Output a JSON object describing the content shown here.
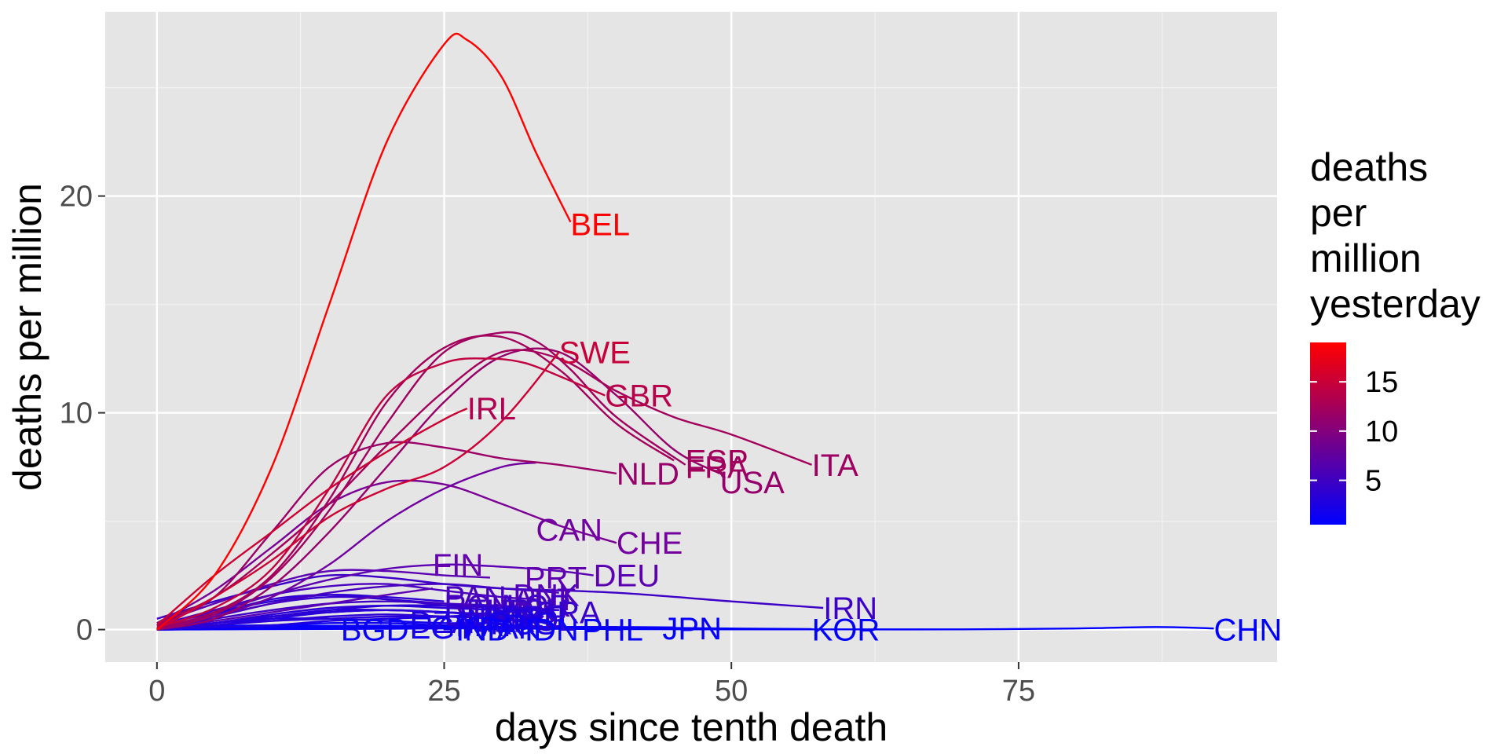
{
  "chart_data": {
    "type": "line",
    "xlabel": "days since tenth death",
    "ylabel": "deaths per million",
    "xlim": [
      -4.5,
      97.5
    ],
    "ylim": [
      -1.5,
      28.5
    ],
    "x_ticks": [
      0,
      25,
      50,
      75
    ],
    "x_tick_labels": [
      "0",
      "25",
      "50",
      "75"
    ],
    "y_ticks": [
      0,
      10,
      20
    ],
    "y_tick_labels": [
      "0",
      "10",
      "20"
    ],
    "grid": true,
    "panel_background": "#e5e5e5",
    "legend": {
      "title_lines": [
        "deaths",
        "per",
        "million",
        "yesterday"
      ],
      "type": "colorbar",
      "range": [
        0.5,
        19
      ],
      "ticks": [
        5,
        10,
        15
      ],
      "tick_labels": [
        "5",
        "10",
        "15"
      ],
      "low_color": "#0000ff",
      "high_color": "#ff0000",
      "placement": "right"
    },
    "series": [
      {
        "name": "BEL",
        "color": "#ff0000",
        "x": [
          0,
          5,
          10,
          15,
          20,
          25,
          27,
          30,
          33,
          36
        ],
        "y": [
          0,
          2.5,
          7.5,
          15,
          22.5,
          27,
          27.2,
          25.5,
          22,
          18.8
        ]
      },
      {
        "name": "SWE",
        "color": "#cc0033",
        "x": [
          0,
          5,
          10,
          15,
          20,
          25,
          30,
          35
        ],
        "y": [
          0,
          1.5,
          3.2,
          5.2,
          6.5,
          7.5,
          9.6,
          12.8
        ]
      },
      {
        "name": "IRL",
        "color": "#cc0033",
        "x": [
          0,
          5,
          10,
          15,
          20,
          25,
          27
        ],
        "y": [
          0.2,
          2.5,
          4.5,
          6.5,
          8.2,
          9.7,
          10.2
        ]
      },
      {
        "name": "GBR",
        "color": "#c00040",
        "x": [
          0,
          5,
          10,
          15,
          20,
          25,
          29,
          32,
          35,
          39
        ],
        "y": [
          0.1,
          1,
          2.8,
          6.5,
          10.8,
          12.3,
          12.5,
          12.3,
          11.7,
          10.8
        ]
      },
      {
        "name": "ESP",
        "color": "#a3005c",
        "x": [
          0,
          5,
          10,
          15,
          20,
          25,
          30,
          35,
          40,
          45
        ],
        "y": [
          0.1,
          0.8,
          2.5,
          6,
          10.5,
          13,
          13.5,
          12,
          9.5,
          7.8
        ]
      },
      {
        "name": "ITA",
        "color": "#a3005c",
        "x": [
          0,
          5,
          10,
          15,
          20,
          25,
          30,
          35,
          40,
          45,
          50,
          57
        ],
        "y": [
          0.3,
          1.5,
          3.5,
          5.8,
          8.5,
          11,
          12.8,
          12.5,
          11,
          9.8,
          9,
          7.6
        ]
      },
      {
        "name": "FRA",
        "color": "#a0005f",
        "x": [
          0,
          5,
          10,
          15,
          20,
          25,
          30,
          33,
          36,
          40,
          46
        ],
        "y": [
          0,
          0.7,
          2.4,
          5.5,
          9.5,
          12.8,
          13.7,
          13.3,
          12,
          9.8,
          7.6
        ]
      },
      {
        "name": "USA",
        "color": "#96006b",
        "x": [
          0,
          5,
          10,
          15,
          20,
          25,
          30,
          35,
          40,
          45,
          49
        ],
        "y": [
          0,
          0.5,
          2,
          4.5,
          7.5,
          10.5,
          12.6,
          12.8,
          10.8,
          8.3,
          7.2
        ]
      },
      {
        "name": "NLD",
        "color": "#9a0066",
        "x": [
          0,
          5,
          10,
          15,
          20,
          25,
          30,
          35,
          40
        ],
        "y": [
          0.2,
          1.5,
          4.5,
          7.5,
          8.6,
          8.4,
          7.9,
          7.6,
          7.2
        ]
      },
      {
        "name": "CAN",
        "color": "#7000a0",
        "x": [
          0,
          5,
          10,
          15,
          20,
          25,
          30,
          33
        ],
        "y": [
          0,
          0.6,
          1.5,
          3,
          5,
          6.5,
          7.5,
          7.7
        ]
      },
      {
        "name": "CHE",
        "color": "#7a0095",
        "x": [
          0,
          5,
          10,
          15,
          20,
          25,
          30,
          35,
          40
        ],
        "y": [
          0.3,
          1.8,
          3.8,
          5.8,
          6.8,
          6.7,
          5.8,
          4.8,
          4
        ]
      },
      {
        "name": "FIN",
        "color": "#5c00b3",
        "x": [
          0,
          5,
          10,
          15,
          20,
          24
        ],
        "y": [
          0.1,
          0.4,
          0.8,
          1.2,
          1.6,
          1.9
        ]
      },
      {
        "name": "PRT",
        "color": "#5c00b3",
        "x": [
          0,
          5,
          10,
          15,
          20,
          25,
          29
        ],
        "y": [
          0.3,
          1.2,
          2.1,
          2.7,
          2.7,
          2.5,
          2.4
        ]
      },
      {
        "name": "DEU",
        "color": "#5c00b3",
        "x": [
          0,
          5,
          10,
          15,
          20,
          25,
          30,
          35,
          38
        ],
        "y": [
          0.2,
          0.8,
          1.6,
          2.3,
          2.8,
          3,
          2.9,
          2.7,
          2.5
        ]
      },
      {
        "name": "IRN",
        "color": "#3d00c7",
        "x": [
          0,
          5,
          10,
          15,
          20,
          25,
          30,
          40,
          50,
          58
        ],
        "y": [
          0.5,
          1.3,
          2,
          2.5,
          2.4,
          2.1,
          1.9,
          1.7,
          1.3,
          1
        ]
      },
      {
        "name": "DNK",
        "color": "#4a00bf",
        "x": [
          0,
          5,
          10,
          15,
          20,
          25,
          30,
          35
        ],
        "y": [
          0.1,
          0.6,
          1.2,
          1.7,
          2,
          2.1,
          1.9,
          1.7
        ]
      },
      {
        "name": "AUT",
        "color": "#4a00bf",
        "x": [
          0,
          5,
          10,
          15,
          20,
          25,
          30,
          33
        ],
        "y": [
          0.2,
          0.9,
          1.6,
          2,
          2.1,
          1.8,
          1.5,
          1.4
        ]
      },
      {
        "name": "NOR",
        "color": "#4000c4",
        "x": [
          0,
          5,
          10,
          15,
          20,
          25,
          30,
          32
        ],
        "y": [
          0.1,
          0.5,
          0.9,
          1.2,
          1.3,
          1.2,
          1.1,
          1
        ]
      },
      {
        "name": "CZE",
        "color": "#2b00d6",
        "x": [
          0,
          5,
          10,
          15,
          20,
          25,
          30
        ],
        "y": [
          0,
          0.3,
          0.6,
          0.8,
          0.9,
          0.8,
          0.6
        ]
      },
      {
        "name": "POL",
        "color": "#2b00d6",
        "x": [
          0,
          5,
          10,
          15,
          20,
          25,
          31
        ],
        "y": [
          0,
          0.2,
          0.4,
          0.6,
          0.7,
          0.6,
          0.5
        ]
      },
      {
        "name": "ROU",
        "color": "#2b00d6",
        "x": [
          0,
          5,
          10,
          15,
          20,
          25,
          30
        ],
        "y": [
          0,
          0.3,
          0.7,
          1,
          1.1,
          1,
          0.9
        ]
      },
      {
        "name": "ISR",
        "color": "#2500db",
        "x": [
          0,
          5,
          10,
          15,
          20,
          25,
          30
        ],
        "y": [
          0,
          0.2,
          0.5,
          0.8,
          0.9,
          0.8,
          0.6
        ]
      },
      {
        "name": "TUR",
        "color": "#3300d0",
        "x": [
          0,
          5,
          10,
          15,
          20,
          25,
          29
        ],
        "y": [
          0.1,
          0.6,
          1.2,
          1.5,
          1.4,
          1.1,
          0.9
        ]
      },
      {
        "name": "RUS",
        "color": "#2000e0",
        "x": [
          0,
          5,
          10,
          15,
          20,
          25,
          29
        ],
        "y": [
          0,
          0.1,
          0.2,
          0.4,
          0.5,
          0.6,
          0.7
        ]
      },
      {
        "name": "ECU",
        "color": "#3000d2",
        "x": [
          0,
          5,
          10,
          15,
          20,
          25,
          30,
          35
        ],
        "y": [
          0.1,
          0.7,
          1.4,
          1.6,
          1.4,
          1.2,
          1,
          0.9
        ]
      },
      {
        "name": "BRA",
        "color": "#2a00d8",
        "x": [
          0,
          5,
          10,
          15,
          20,
          25,
          30,
          35
        ],
        "y": [
          0,
          0.3,
          0.6,
          0.9,
          1.1,
          1.1,
          1,
          0.9
        ]
      },
      {
        "name": "PER",
        "color": "#2a00d8",
        "x": [
          0,
          5,
          10,
          15,
          20,
          25,
          30
        ],
        "y": [
          0,
          0.3,
          0.6,
          0.8,
          0.9,
          0.8,
          0.7
        ]
      },
      {
        "name": "MEX",
        "color": "#2a00d8",
        "x": [
          0,
          5,
          10,
          15,
          20,
          25,
          30
        ],
        "y": [
          0,
          0.2,
          0.4,
          0.5,
          0.6,
          0.6,
          0.5
        ]
      },
      {
        "name": "DOM",
        "color": "#2a00d8",
        "x": [
          0,
          5,
          10,
          15,
          20,
          25,
          30
        ],
        "y": [
          0,
          0.3,
          0.6,
          0.9,
          0.9,
          0.8,
          0.7
        ]
      },
      {
        "name": "PAN",
        "color": "#3000d2",
        "x": [
          0,
          5,
          10,
          15,
          20,
          25
        ],
        "y": [
          0.2,
          0.8,
          1.3,
          1.6,
          1.5,
          1.3
        ]
      },
      {
        "name": "IND",
        "color": "#0800f8",
        "x": [
          0,
          5,
          10,
          15,
          20,
          25,
          30,
          33
        ],
        "y": [
          0,
          0.01,
          0.02,
          0.03,
          0.04,
          0.05,
          0.06,
          0.07
        ]
      },
      {
        "name": "IDN",
        "color": "#0a00f5",
        "x": [
          0,
          5,
          10,
          15,
          20,
          25,
          30,
          35
        ],
        "y": [
          0,
          0.03,
          0.06,
          0.08,
          0.1,
          0.1,
          0.1,
          0.1
        ]
      },
      {
        "name": "PHL",
        "color": "#0a00f5",
        "x": [
          0,
          5,
          10,
          15,
          20,
          25,
          30,
          35,
          40
        ],
        "y": [
          0,
          0.05,
          0.1,
          0.12,
          0.14,
          0.14,
          0.13,
          0.12,
          0.12
        ]
      },
      {
        "name": "EGY",
        "color": "#0a00f5",
        "x": [
          0,
          5,
          10,
          15,
          20,
          25,
          29
        ],
        "y": [
          0,
          0.03,
          0.06,
          0.08,
          0.09,
          0.1,
          0.1
        ]
      },
      {
        "name": "PAK",
        "color": "#0a00f5",
        "x": [
          0,
          5,
          10,
          15,
          20,
          25,
          30
        ],
        "y": [
          0,
          0.02,
          0.04,
          0.06,
          0.07,
          0.08,
          0.09
        ]
      },
      {
        "name": "BGD",
        "color": "#0a00f5",
        "x": [
          0,
          5,
          10,
          15,
          17
        ],
        "y": [
          0,
          0.02,
          0.04,
          0.05,
          0.05
        ]
      },
      {
        "name": "DZA",
        "color": "#0f00f0",
        "x": [
          0,
          5,
          10,
          15,
          20,
          25,
          30
        ],
        "y": [
          0.1,
          0.3,
          0.5,
          0.5,
          0.4,
          0.3,
          0.3
        ]
      },
      {
        "name": "MAR",
        "color": "#0f00f0",
        "x": [
          0,
          5,
          10,
          15,
          20,
          25,
          28
        ],
        "y": [
          0,
          0.1,
          0.2,
          0.3,
          0.3,
          0.2,
          0.2
        ]
      },
      {
        "name": "JPN",
        "color": "#0a00f5",
        "x": [
          0,
          5,
          10,
          15,
          20,
          25,
          30,
          35,
          40,
          45
        ],
        "y": [
          0,
          0.03,
          0.05,
          0.07,
          0.08,
          0.1,
          0.12,
          0.12,
          0.12,
          0.1
        ]
      },
      {
        "name": "KOR",
        "color": "#0500fa",
        "x": [
          0,
          10,
          20,
          30,
          40,
          50,
          57
        ],
        "y": [
          0.1,
          0.15,
          0.18,
          0.12,
          0.1,
          0.05,
          0.02
        ]
      },
      {
        "name": "CHN",
        "color": "#0000ff",
        "x": [
          0,
          10,
          20,
          30,
          40,
          50,
          60,
          70,
          80,
          87,
          92
        ],
        "y": [
          0.1,
          0.2,
          0.12,
          0.05,
          0.02,
          0.01,
          0.01,
          0.01,
          0.05,
          0.12,
          0.05
        ]
      }
    ],
    "labels": [
      {
        "text": "BEL",
        "x": 36,
        "y": 18.7,
        "color": "#ff0000"
      },
      {
        "text": "SWE",
        "x": 35,
        "y": 12.8,
        "color": "#c8003a"
      },
      {
        "text": "GBR",
        "x": 39,
        "y": 10.8,
        "color": "#b8004a"
      },
      {
        "text": "IRL",
        "x": 27,
        "y": 10.2,
        "color": "#b0004f"
      },
      {
        "text": "ESP",
        "x": 46,
        "y": 7.8,
        "color": "#a3005c"
      },
      {
        "text": "FRA",
        "x": 46,
        "y": 7.5,
        "color": "#a0005f"
      },
      {
        "text": "ITA",
        "x": 57,
        "y": 7.6,
        "color": "#9e0062"
      },
      {
        "text": "NLD",
        "x": 40,
        "y": 7.2,
        "color": "#98006a"
      },
      {
        "text": "USA",
        "x": 49,
        "y": 6.8,
        "color": "#96006b"
      },
      {
        "text": "CAN",
        "x": 33,
        "y": 4.6,
        "color": "#7000a0"
      },
      {
        "text": "CHE",
        "x": 40,
        "y": 4.0,
        "color": "#7400a0"
      },
      {
        "text": "FIN",
        "x": 24,
        "y": 3.0,
        "color": "#6400ad"
      },
      {
        "text": "PRT",
        "x": 32,
        "y": 2.4,
        "color": "#6000b0"
      },
      {
        "text": "DEU",
        "x": 38,
        "y": 2.5,
        "color": "#5c00b3"
      },
      {
        "text": "DNK",
        "x": 31,
        "y": 1.6,
        "color": "#5200ba"
      },
      {
        "text": "AUT",
        "x": 31,
        "y": 1.4,
        "color": "#5000bc"
      },
      {
        "text": "PAN",
        "x": 25,
        "y": 1.5,
        "color": "#4a00bf"
      },
      {
        "text": "ROU",
        "x": 25,
        "y": 1.1,
        "color": "#4800c0"
      },
      {
        "text": "NOR",
        "x": 30,
        "y": 1.1,
        "color": "#4400c2"
      },
      {
        "text": "TUR",
        "x": 27,
        "y": 0.9,
        "color": "#4000c4"
      },
      {
        "text": "ECU",
        "x": 30,
        "y": 0.9,
        "color": "#3c00c7"
      },
      {
        "text": "IRN",
        "x": 58,
        "y": 1.0,
        "color": "#3d00c7"
      },
      {
        "text": "BRA",
        "x": 33,
        "y": 0.8,
        "color": "#3800ca"
      },
      {
        "text": "DOM",
        "x": 25,
        "y": 0.7,
        "color": "#3400cd"
      },
      {
        "text": "CZE",
        "x": 30,
        "y": 0.6,
        "color": "#3000d2"
      },
      {
        "text": "PER",
        "x": 28,
        "y": 0.6,
        "color": "#2c00d5"
      },
      {
        "text": "ISR",
        "x": 29,
        "y": 0.5,
        "color": "#2800d8"
      },
      {
        "text": "POL",
        "x": 31,
        "y": 0.45,
        "color": "#2500db"
      },
      {
        "text": "MEX",
        "x": 27,
        "y": 0.4,
        "color": "#2200dd"
      },
      {
        "text": "DZA",
        "x": 22,
        "y": 0.35,
        "color": "#1e00e0"
      },
      {
        "text": "RUS",
        "x": 29,
        "y": 0.3,
        "color": "#1a00e5"
      },
      {
        "text": "MAR",
        "x": 26,
        "y": 0.2,
        "color": "#1600e8"
      },
      {
        "text": "EGY",
        "x": 22,
        "y": 0.1,
        "color": "#1200ec"
      },
      {
        "text": "PAK",
        "x": 28,
        "y": 0.1,
        "color": "#0e00f0"
      },
      {
        "text": "IND",
        "x": 26,
        "y": 0.0,
        "color": "#0a00f5"
      },
      {
        "text": "IDN",
        "x": 32,
        "y": 0.0,
        "color": "#0800f8"
      },
      {
        "text": "PHL",
        "x": 37,
        "y": 0.0,
        "color": "#0800f8"
      },
      {
        "text": "BGD",
        "x": 16,
        "y": 0.0,
        "color": "#0a00f5"
      },
      {
        "text": "JPN",
        "x": 44,
        "y": 0.05,
        "color": "#0600fa"
      },
      {
        "text": "KOR",
        "x": 57,
        "y": 0.0,
        "color": "#0300fc"
      },
      {
        "text": "CHN",
        "x": 92,
        "y": 0.0,
        "color": "#0000ff"
      }
    ]
  }
}
